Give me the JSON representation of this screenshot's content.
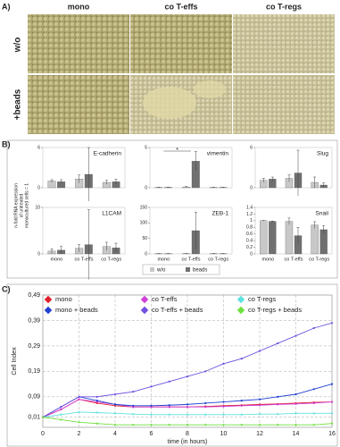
{
  "panel_a": {
    "label": "A)",
    "columns": [
      "mono",
      "co T-effs",
      "co T-regs"
    ],
    "rows": [
      "w/o",
      "+beads"
    ]
  },
  "panel_b": {
    "label": "B)",
    "y_label": [
      "n-fold RNA expression",
      "of untreated",
      "monocultured cells = 1"
    ]
  },
  "chart_data": [
    {
      "type": "bar",
      "title": "E-cadherin",
      "categories": [
        null,
        null,
        null
      ],
      "ylim": [
        0,
        6
      ],
      "yticks": [
        0,
        6
      ],
      "series": [
        {
          "name": "w/o",
          "color": "#c8c8c8",
          "values": [
            1.0,
            1.3,
            0.8
          ],
          "errors": [
            0.2,
            0.6,
            0.3
          ]
        },
        {
          "name": "beads",
          "color": "#707070",
          "values": [
            0.9,
            2.0,
            0.9
          ],
          "errors": [
            0.3,
            4.0,
            0.4
          ]
        }
      ]
    },
    {
      "type": "bar",
      "title": "vimentin",
      "annotation": "*",
      "categories": [
        null,
        null,
        null
      ],
      "ylim": [
        0,
        5
      ],
      "yticks": [
        0,
        5
      ],
      "series": [
        {
          "name": "w/o",
          "color": "#c8c8c8",
          "values": [
            0.05,
            0.1,
            0.05
          ],
          "errors": [
            0.02,
            0.05,
            0.02
          ]
        },
        {
          "name": "beads",
          "color": "#707070",
          "values": [
            0.05,
            3.3,
            0.05
          ],
          "errors": [
            0.02,
            1.2,
            0.02
          ]
        }
      ]
    },
    {
      "type": "bar",
      "title": "Slug",
      "categories": [
        null,
        null,
        null
      ],
      "ylim": [
        0,
        6
      ],
      "yticks": [
        0,
        6
      ],
      "series": [
        {
          "name": "w/o",
          "color": "#c8c8c8",
          "values": [
            1.1,
            1.4,
            0.8
          ],
          "errors": [
            0.3,
            0.5,
            0.8
          ]
        },
        {
          "name": "beads",
          "color": "#707070",
          "values": [
            1.3,
            2.2,
            0.4
          ],
          "errors": [
            0.3,
            3.4,
            0.3
          ]
        }
      ]
    },
    {
      "type": "bar",
      "title": "L1CAM",
      "categories": [
        "mono",
        "co T-effs",
        "co T-regs"
      ],
      "ylim": [
        0,
        10
      ],
      "yticks": [
        0,
        10
      ],
      "series": [
        {
          "name": "w/o",
          "color": "#c8c8c8",
          "values": [
            0.6,
            1.2,
            1.6
          ],
          "errors": [
            0.5,
            0.8,
            0.9
          ]
        },
        {
          "name": "beads",
          "color": "#707070",
          "values": [
            0.8,
            2.0,
            1.3
          ],
          "errors": [
            0.8,
            7.5,
            1.0
          ]
        }
      ]
    },
    {
      "type": "bar",
      "title": "ZEB-1",
      "categories": [
        "mono",
        "co T-effs",
        "co T-regs"
      ],
      "ylim": [
        0,
        150
      ],
      "yticks": [
        0,
        50,
        100,
        150
      ],
      "series": [
        {
          "name": "w/o",
          "color": "#c8c8c8",
          "values": [
            1,
            1,
            1
          ],
          "errors": [
            0.5,
            0.5,
            0.5
          ]
        },
        {
          "name": "beads",
          "color": "#707070",
          "values": [
            1,
            75,
            1
          ],
          "errors": [
            0.5,
            60,
            0.5
          ]
        }
      ]
    },
    {
      "type": "bar",
      "title": "Snail",
      "categories": [
        "mono",
        "co T-effs",
        "co T-regs"
      ],
      "ylim": [
        0,
        1.4
      ],
      "yticks": [
        0,
        0.2,
        0.4,
        0.6,
        0.8,
        1,
        1.2,
        1.4
      ],
      "series": [
        {
          "name": "w/o",
          "color": "#c8c8c8",
          "values": [
            1.0,
            0.98,
            0.87
          ],
          "errors": [
            0.01,
            0.1,
            0.1
          ]
        },
        {
          "name": "beads",
          "color": "#707070",
          "values": [
            0.98,
            0.55,
            0.73
          ],
          "errors": [
            0.01,
            0.25,
            0.12
          ]
        }
      ]
    },
    {
      "type": "line",
      "label": "C)",
      "y_label": "Cell Index",
      "x_label": "time (in hours)",
      "grid": true,
      "x": [
        0,
        1,
        2,
        3,
        4,
        5,
        6,
        7,
        8,
        9,
        10,
        11,
        12,
        13,
        14,
        15,
        16
      ],
      "xlim": [
        0,
        16
      ],
      "xticks": [
        0,
        2,
        4,
        6,
        8,
        10,
        12,
        14,
        16
      ],
      "ylim": [
        -0.03,
        0.49
      ],
      "yticks": [
        {
          "value": 0.01,
          "label": "0,01"
        },
        {
          "value": 0.09,
          "label": "0,09"
        },
        {
          "value": 0.19,
          "label": "0,19"
        },
        {
          "value": 0.29,
          "label": "0,29"
        },
        {
          "value": 0.39,
          "label": "0,39"
        },
        {
          "value": 0.49,
          "label": "0,49"
        }
      ],
      "series": [
        {
          "name": "mono",
          "color": "#e0202a",
          "values": [
            0.01,
            0.04,
            0.08,
            0.065,
            0.055,
            0.05,
            0.05,
            0.05,
            0.05,
            0.052,
            0.055,
            0.057,
            0.06,
            0.062,
            0.065,
            0.068,
            0.07
          ]
        },
        {
          "name": "co T-effs",
          "color": "#d040d8",
          "values": [
            0.01,
            0.04,
            0.08,
            0.07,
            0.06,
            0.05,
            0.05,
            0.05,
            0.05,
            0.05,
            0.052,
            0.055,
            0.057,
            0.06,
            0.062,
            0.065,
            0.07
          ]
        },
        {
          "name": "co T-regs",
          "color": "#60e0e0",
          "values": [
            0.01,
            0.02,
            0.03,
            0.028,
            0.025,
            0.022,
            0.02,
            0.02,
            0.02,
            0.02,
            0.02,
            0.02,
            0.022,
            0.022,
            0.025,
            0.025,
            0.025
          ]
        },
        {
          "name": "mono + beads",
          "color": "#2040d0",
          "values": [
            0.01,
            0.05,
            0.09,
            0.075,
            0.06,
            0.055,
            0.055,
            0.057,
            0.06,
            0.065,
            0.07,
            0.075,
            0.08,
            0.09,
            0.1,
            0.12,
            0.14
          ]
        },
        {
          "name": "co T-effs + beads",
          "color": "#7050e0",
          "values": [
            0.01,
            0.05,
            0.09,
            0.09,
            0.1,
            0.11,
            0.13,
            0.15,
            0.17,
            0.19,
            0.22,
            0.24,
            0.27,
            0.3,
            0.33,
            0.36,
            0.38
          ]
        },
        {
          "name": "co T-regs + beads",
          "color": "#70e040",
          "values": [
            0.01,
            0.0,
            -0.01,
            -0.015,
            -0.02,
            -0.02,
            -0.02,
            -0.02,
            -0.02,
            -0.02,
            -0.02,
            -0.02,
            -0.02,
            -0.02,
            -0.02,
            -0.02,
            -0.015
          ]
        }
      ]
    }
  ]
}
